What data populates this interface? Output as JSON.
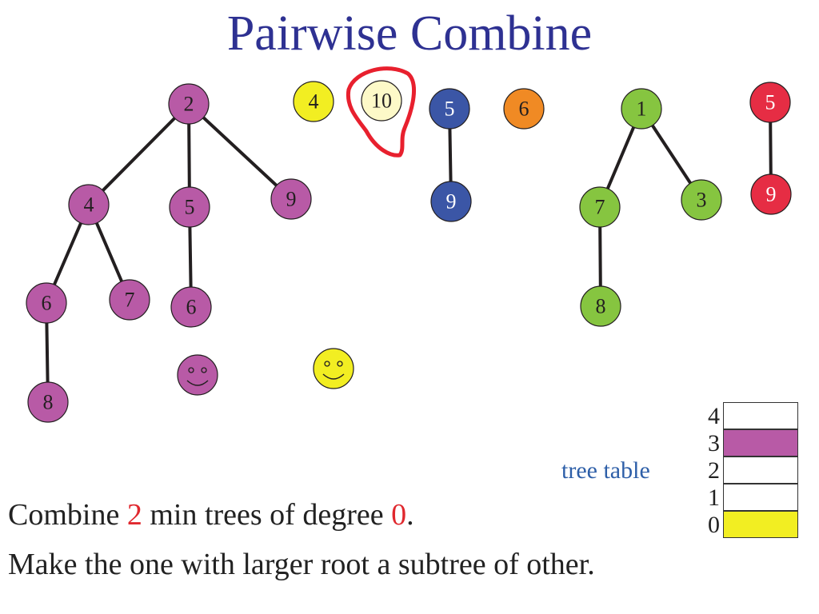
{
  "title": "Pairwise Combine",
  "colors": {
    "title": "#2e3192",
    "purple": "#b85aa6",
    "yellow": "#f2ee22",
    "pale_yellow": "#fdf9c8",
    "blue": "#3b56a6",
    "orange": "#f08a24",
    "green": "#86c540",
    "red": "#e62d44",
    "edge": "#231f20",
    "highlight_ring": "#e8202e",
    "emphasis_text": "#e0282e",
    "label_text": "#2e5fa8"
  },
  "trees": [
    {
      "id": "purple-tree",
      "color_key": "purple",
      "root": {
        "key": "2",
        "children": [
          {
            "key": "4",
            "children": [
              {
                "key": "6",
                "children": [
                  {
                    "key": "8",
                    "children": []
                  }
                ]
              },
              {
                "key": "7",
                "children": []
              }
            ]
          },
          {
            "key": "5",
            "children": [
              {
                "key": "6",
                "children": []
              }
            ]
          },
          {
            "key": "9",
            "children": []
          }
        ]
      }
    },
    {
      "id": "yellow-tree",
      "color_key": "yellow",
      "root": {
        "key": "4",
        "children": []
      }
    },
    {
      "id": "pale-tree",
      "color_key": "pale_yellow",
      "circled": true,
      "root": {
        "key": "10",
        "children": []
      }
    },
    {
      "id": "blue-tree",
      "color_key": "blue",
      "root": {
        "key": "5",
        "children": [
          {
            "key": "9",
            "children": []
          }
        ]
      }
    },
    {
      "id": "orange-tree",
      "color_key": "orange",
      "root": {
        "key": "6",
        "children": []
      }
    },
    {
      "id": "green-tree",
      "color_key": "green",
      "root": {
        "key": "1",
        "children": [
          {
            "key": "7",
            "children": [
              {
                "key": "8",
                "children": []
              }
            ]
          },
          {
            "key": "3",
            "children": []
          }
        ]
      }
    },
    {
      "id": "red-tree",
      "color_key": "red",
      "root": {
        "key": "5",
        "children": [
          {
            "key": "9",
            "children": []
          }
        ]
      }
    }
  ],
  "smileys": [
    {
      "id": "purple-smiley",
      "color_key": "purple"
    },
    {
      "id": "yellow-smiley",
      "color_key": "yellow"
    }
  ],
  "tree_table": {
    "label": "tree table",
    "rows": [
      {
        "degree": "4",
        "fill": "#ffffff"
      },
      {
        "degree": "3",
        "fill": "#b85aa6"
      },
      {
        "degree": "2",
        "fill": "#ffffff"
      },
      {
        "degree": "1",
        "fill": "#ffffff"
      },
      {
        "degree": "0",
        "fill": "#f2ee22"
      }
    ]
  },
  "caption": {
    "line1": {
      "before": "Combine ",
      "count": "2",
      "middle": " min trees of degree ",
      "degree": "0",
      "after": "."
    },
    "line2": "Make the one with larger root a subtree of other."
  }
}
